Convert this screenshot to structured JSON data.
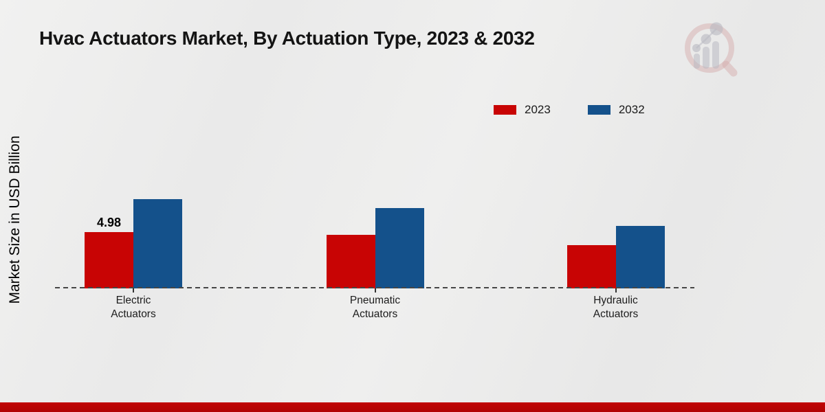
{
  "page": {
    "title": "Hvac Actuators Market, By Actuation Type, 2023 & 2032",
    "y_axis_label": "Market Size in USD Billion"
  },
  "colors": {
    "series_2023": "#c80404",
    "series_2032": "#14518b",
    "bottom_band": "#b50404",
    "background": "#ebebeb",
    "baseline": "#454545"
  },
  "legend": {
    "items": [
      {
        "label": "2023",
        "color": "#c80404"
      },
      {
        "label": "2032",
        "color": "#14518b"
      }
    ]
  },
  "watermark": {
    "name": "magnifier-bar-chart-logo"
  },
  "chart_data": {
    "type": "bar",
    "title": "Hvac Actuators Market, By Actuation Type, 2023 & 2032",
    "xlabel": "",
    "ylabel": "Market Size in USD Billion",
    "categories": [
      "Electric Actuators",
      "Pneumatic Actuators",
      "Hydraulic Actuators"
    ],
    "series": [
      {
        "name": "2023",
        "color": "#c80404",
        "values": [
          4.98,
          4.7,
          3.8
        ]
      },
      {
        "name": "2032",
        "color": "#14518b",
        "values": [
          7.9,
          7.1,
          5.5
        ]
      }
    ],
    "data_labels": [
      {
        "series": 0,
        "category": 0,
        "text": "4.98"
      }
    ],
    "ylim": [
      0,
      8.5
    ],
    "grid": false,
    "y_ticks_visible": false,
    "baseline_style": "dashed",
    "legend_position": "top-right"
  }
}
